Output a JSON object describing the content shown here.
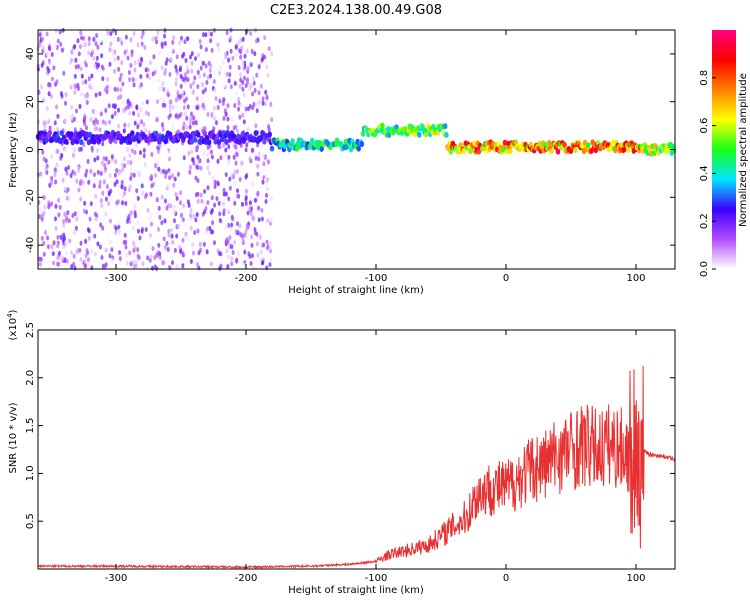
{
  "title": "C2E3.2024.138.00.49.G08",
  "chart_data": [
    {
      "type": "heatmap",
      "xlabel": "Height of straight line (km)",
      "ylabel": "Frequency (Hz)",
      "xlim": [
        -360,
        130
      ],
      "ylim": [
        -50,
        50
      ],
      "x_ticks": [
        -300,
        -200,
        -100,
        0,
        100
      ],
      "y_ticks": [
        -40,
        -20,
        0,
        20,
        40
      ],
      "colorbar": {
        "label": "Normalized spectral amplitude",
        "range": [
          0,
          1
        ],
        "ticks": [
          0.0,
          0.2,
          0.4,
          0.6,
          0.8
        ],
        "colors": [
          "#ffffff",
          "#b04cff",
          "#3b00ff",
          "#00e5ff",
          "#19ff19",
          "#ffff00",
          "#ff8000",
          "#ff0000",
          "#ff0080"
        ]
      },
      "features": [
        {
          "x": [
            -360,
            -180
          ],
          "frequency_center": 5,
          "amplitude": 0.25,
          "note": "noisy band"
        },
        {
          "x": [
            -180,
            -110
          ],
          "frequency_center": 2,
          "amplitude": 0.45
        },
        {
          "x": [
            -110,
            -45
          ],
          "frequency_center": 8,
          "amplitude": 0.55
        },
        {
          "x": [
            -45,
            105
          ],
          "frequency_center": 1,
          "amplitude": 0.8
        },
        {
          "x": [
            105,
            130
          ],
          "frequency_center": 0,
          "amplitude": 0.6
        }
      ]
    },
    {
      "type": "line",
      "xlabel": "Height of straight line (km)",
      "ylabel": "SNR (10 * v/v)",
      "y_multiplier": "(x10^4)",
      "xlim": [
        -360,
        130
      ],
      "ylim": [
        0,
        2.5
      ],
      "x_ticks": [
        -300,
        -200,
        -100,
        0,
        100
      ],
      "y_ticks": [
        0.5,
        1.0,
        1.5,
        2.0,
        2.5
      ],
      "series": [
        {
          "color": "#e83030",
          "x": [
            -360,
            -300,
            -200,
            -150,
            -120,
            -100,
            -90,
            -75,
            -60,
            -50,
            -40,
            -30,
            -25,
            -20,
            -10,
            0,
            10,
            20,
            30,
            40,
            50,
            60,
            70,
            80,
            90,
            95,
            100,
            103,
            106,
            110,
            120,
            130
          ],
          "y": [
            0.03,
            0.03,
            0.02,
            0.03,
            0.05,
            0.08,
            0.15,
            0.2,
            0.25,
            0.35,
            0.45,
            0.55,
            0.7,
            0.8,
            0.85,
            0.85,
            0.95,
            1.05,
            1.1,
            1.2,
            1.25,
            1.3,
            1.25,
            1.3,
            1.25,
            1.2,
            1.4,
            1.1,
            1.25,
            1.2,
            1.18,
            1.15
          ]
        }
      ]
    }
  ]
}
